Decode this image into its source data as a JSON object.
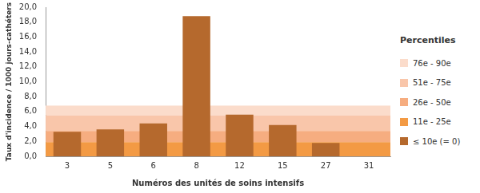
{
  "chart_data": {
    "type": "bar",
    "x_label": "Numéros des unités de soins intensifs",
    "y_label": "Taux d'incidence / 1000 jours-cathéters",
    "categories": [
      "3",
      "5",
      "6",
      "8",
      "12",
      "15",
      "27",
      "31"
    ],
    "values": [
      3.3,
      3.6,
      4.4,
      18.8,
      5.6,
      4.2,
      1.8,
      0
    ],
    "color": "#b5692d",
    "ylim": [
      0,
      20
    ],
    "yticks": [
      {
        "value": 0,
        "label": "0,0"
      },
      {
        "value": 2,
        "label": "2,0"
      },
      {
        "value": 4,
        "label": "4,0"
      },
      {
        "value": 6,
        "label": "6,0"
      },
      {
        "value": 8,
        "label": "8,0"
      },
      {
        "value": 10,
        "label": "10,0"
      },
      {
        "value": 12,
        "label": "12,0"
      },
      {
        "value": 14,
        "label": "14,0"
      },
      {
        "value": 16,
        "label": "16,0"
      },
      {
        "value": 18,
        "label": "18,0"
      },
      {
        "value": 20,
        "label": "20,0"
      }
    ],
    "grid": false,
    "legend": "right",
    "percentiles": {
      "title": "Percentiles",
      "bands": [
        {
          "label": "76e - 90e",
          "from": 5.5,
          "to": 6.8,
          "color": "#fbdccb"
        },
        {
          "label": "51e - 75e",
          "from": 3.4,
          "to": 5.5,
          "color": "#f9c6aa"
        },
        {
          "label": "26e - 50e",
          "from": 1.9,
          "to": 3.4,
          "color": "#f6ad80"
        },
        {
          "label": "11e - 25e",
          "from": 0,
          "to": 1.9,
          "color": "#f39a44"
        },
        {
          "label": "≤ 10e (= 0)",
          "from": 0,
          "to": 0,
          "color": "#b5692d"
        }
      ]
    }
  }
}
